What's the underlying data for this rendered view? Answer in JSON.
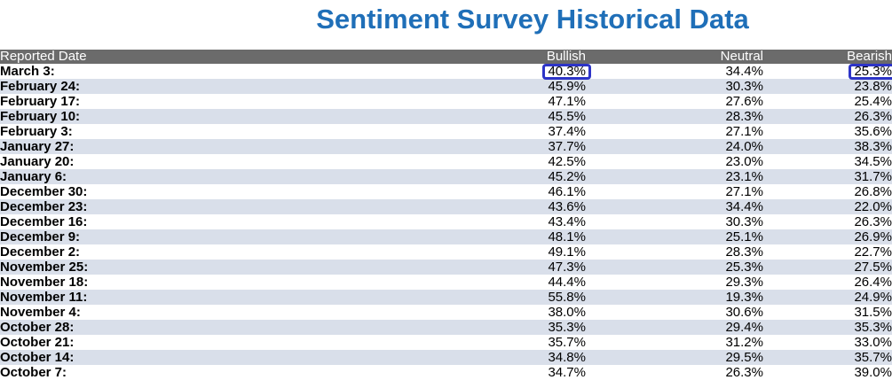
{
  "chart_data": {
    "type": "table",
    "title": "Sentiment Survey Historical Data",
    "columns": [
      "Reported Date",
      "Bullish",
      "Neutral",
      "Bearish"
    ],
    "rows": [
      {
        "date": "March 3:",
        "bullish": "40.3%",
        "neutral": "34.4%",
        "bearish": "25.3%"
      },
      {
        "date": "February 24:",
        "bullish": "45.9%",
        "neutral": "30.3%",
        "bearish": "23.8%"
      },
      {
        "date": "February 17:",
        "bullish": "47.1%",
        "neutral": "27.6%",
        "bearish": "25.4%"
      },
      {
        "date": "February 10:",
        "bullish": "45.5%",
        "neutral": "28.3%",
        "bearish": "26.3%"
      },
      {
        "date": "February 3:",
        "bullish": "37.4%",
        "neutral": "27.1%",
        "bearish": "35.6%"
      },
      {
        "date": "January 27:",
        "bullish": "37.7%",
        "neutral": "24.0%",
        "bearish": "38.3%"
      },
      {
        "date": "January 20:",
        "bullish": "42.5%",
        "neutral": "23.0%",
        "bearish": "34.5%"
      },
      {
        "date": "January 6:",
        "bullish": "45.2%",
        "neutral": "23.1%",
        "bearish": "31.7%"
      },
      {
        "date": "December 30:",
        "bullish": "46.1%",
        "neutral": "27.1%",
        "bearish": "26.8%"
      },
      {
        "date": "December 23:",
        "bullish": "43.6%",
        "neutral": "34.4%",
        "bearish": "22.0%"
      },
      {
        "date": "December 16:",
        "bullish": "43.4%",
        "neutral": "30.3%",
        "bearish": "26.3%"
      },
      {
        "date": "December 9:",
        "bullish": "48.1%",
        "neutral": "25.1%",
        "bearish": "26.9%"
      },
      {
        "date": "December 2:",
        "bullish": "49.1%",
        "neutral": "28.3%",
        "bearish": "22.7%"
      },
      {
        "date": "November 25:",
        "bullish": "47.3%",
        "neutral": "25.3%",
        "bearish": "27.5%"
      },
      {
        "date": "November 18:",
        "bullish": "44.4%",
        "neutral": "29.3%",
        "bearish": "26.4%"
      },
      {
        "date": "November 11:",
        "bullish": "55.8%",
        "neutral": "19.3%",
        "bearish": "24.9%"
      },
      {
        "date": "November 4:",
        "bullish": "38.0%",
        "neutral": "30.6%",
        "bearish": "31.5%"
      },
      {
        "date": "October 28:",
        "bullish": "35.3%",
        "neutral": "29.4%",
        "bearish": "35.3%"
      },
      {
        "date": "October 21:",
        "bullish": "35.7%",
        "neutral": "31.2%",
        "bearish": "33.0%"
      },
      {
        "date": "October 14:",
        "bullish": "34.8%",
        "neutral": "29.5%",
        "bearish": "35.7%"
      },
      {
        "date": "October 7:",
        "bullish": "34.7%",
        "neutral": "26.3%",
        "bearish": "39.0%"
      }
    ],
    "highlighted_cells": [
      {
        "row": 0,
        "column": "Bullish"
      },
      {
        "row": 0,
        "column": "Bearish"
      }
    ]
  },
  "colors": {
    "title": "#1f6fb8",
    "header_bg": "#6b6b6b",
    "header_text": "#ffffff",
    "stripe": "#d9dfea",
    "highlight": "#2d34c7"
  }
}
